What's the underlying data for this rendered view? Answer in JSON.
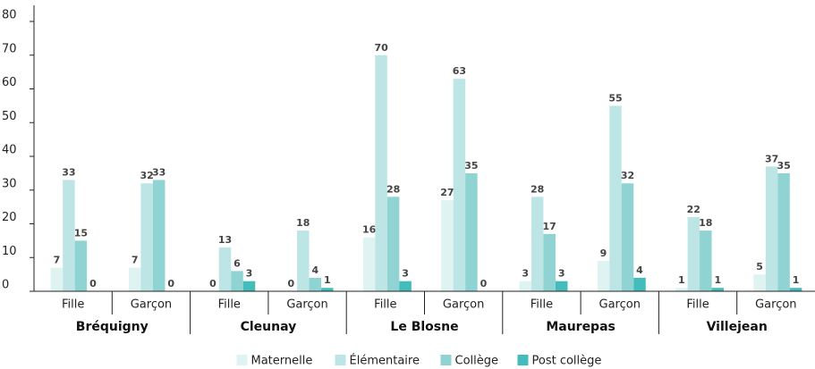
{
  "chart_data": {
    "type": "bar",
    "categories": [
      "Fille",
      "Garçon",
      "Fille",
      "Garçon",
      "Fille",
      "Garçon",
      "Fille",
      "Garçon",
      "Fille",
      "Garçon"
    ],
    "groups": [
      "Bréquigny",
      "Cleunay",
      "Le Blosne",
      "Maurepas",
      "Villejean"
    ],
    "series": [
      {
        "name": "Maternelle",
        "color": "#e0f3f3",
        "values": [
          7,
          7,
          0,
          0,
          16,
          27,
          3,
          9,
          1,
          5
        ]
      },
      {
        "name": "Élémentaire",
        "color": "#bde5e6",
        "values": [
          33,
          32,
          13,
          18,
          70,
          63,
          28,
          55,
          22,
          37
        ]
      },
      {
        "name": "Collège",
        "color": "#8fd3d3",
        "values": [
          15,
          33,
          6,
          4,
          28,
          35,
          17,
          32,
          18,
          35
        ]
      },
      {
        "name": "Post collège",
        "color": "#45bcbc",
        "values": [
          0,
          0,
          3,
          1,
          3,
          0,
          3,
          4,
          1,
          1
        ]
      }
    ],
    "ylim": [
      0,
      80
    ],
    "yticks": [
      0,
      10,
      20,
      30,
      40,
      50,
      60,
      70,
      80
    ],
    "legend": "bottom"
  }
}
